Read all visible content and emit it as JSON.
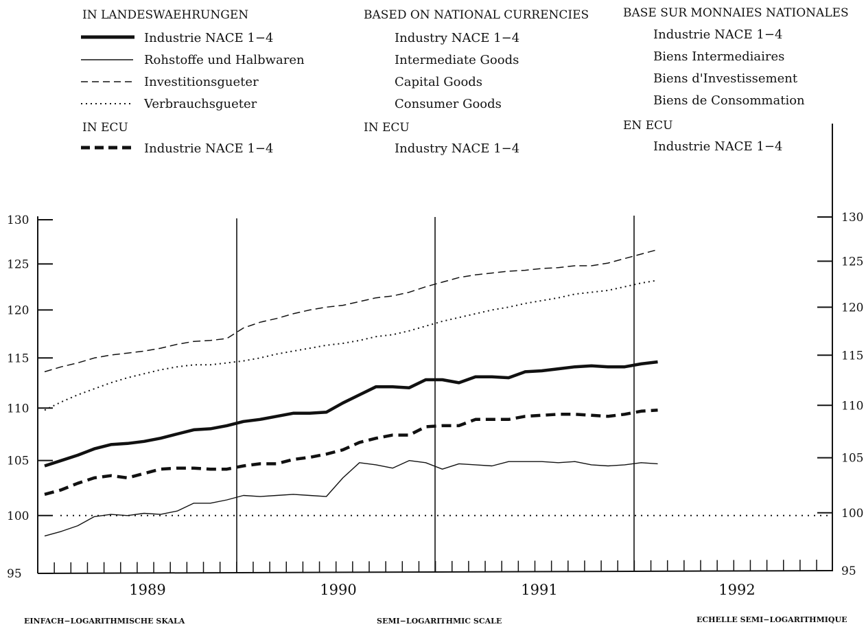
{
  "legend": {
    "german": {
      "header": "IN LANDESWAEHRUNGEN",
      "items": [
        "Industrie NACE 1−4",
        "Rohstoffe und Halbwaren",
        "Investitionsgueter",
        "Verbrauchsgueter"
      ],
      "ecu_header": "IN ECU",
      "ecu_item": "Industrie NACE 1−4"
    },
    "english": {
      "header": "BASED ON NATIONAL CURRENCIES",
      "items": [
        "Industry NACE 1−4",
        "Intermediate Goods",
        "Capital Goods",
        "Consumer Goods"
      ],
      "ecu_header": "IN ECU",
      "ecu_item": "Industry NACE 1−4"
    },
    "french": {
      "header": "BASE SUR MONNAIES NATIONALES",
      "items": [
        "Industrie NACE 1−4",
        "Biens Intermediaires",
        "Biens d'Investissement",
        "Biens de Consommation"
      ],
      "ecu_header": "EN ECU",
      "ecu_item": "Industrie NACE 1−4"
    }
  },
  "footer": {
    "left": "EINFACH−LOGARITHMISCHE SKALA",
    "center": "SEMI−LOGARITHMIC SCALE",
    "right": "ECHELLE SEMI−LOGARITHMIQUE"
  },
  "chart_data": {
    "type": "line",
    "yscale": "log",
    "ylim": [
      95,
      131
    ],
    "yticks": [
      95,
      100,
      105,
      110,
      115,
      120,
      125,
      130
    ],
    "x_labels": [
      "1989",
      "1990",
      "1991",
      "1992"
    ],
    "x_monthly_from": "1989-01",
    "reference_line": 100,
    "series": [
      {
        "name": "Industrie NACE 1−4",
        "style": "thick-solid",
        "values": [
          104.5,
          105,
          105.5,
          106.1,
          106.5,
          106.6,
          106.8,
          107.1,
          107.5,
          107.9,
          108.0,
          108.3,
          108.7,
          108.9,
          109.2,
          109.5,
          109.5,
          109.6,
          110.5,
          111.3,
          112.1,
          112.1,
          112.0,
          112.8,
          112.8,
          112.5,
          113.1,
          113.1,
          113.0,
          113.6,
          113.7,
          113.9,
          114.1,
          114.2,
          114.1,
          114.1,
          114.4,
          114.6
        ]
      },
      {
        "name": "Rohstoffe und Halbwaren",
        "style": "thin-solid",
        "values": [
          98.2,
          98.6,
          99.1,
          99.9,
          100.1,
          100.0,
          100.2,
          100.1,
          100.4,
          101.1,
          101.1,
          101.4,
          101.8,
          101.7,
          101.8,
          101.9,
          101.8,
          101.7,
          103.4,
          104.8,
          104.6,
          104.3,
          105.0,
          104.8,
          104.2,
          104.7,
          104.6,
          104.5,
          104.9,
          104.9,
          104.9,
          104.8,
          104.9,
          104.6,
          104.5,
          104.6,
          104.8,
          104.7
        ]
      },
      {
        "name": "Investitionsgueter",
        "style": "dashed",
        "values": [
          113.6,
          114.1,
          114.5,
          115.0,
          115.3,
          115.5,
          115.7,
          116.0,
          116.4,
          116.7,
          116.8,
          117.0,
          118.1,
          118.7,
          119.1,
          119.6,
          120.0,
          120.3,
          120.5,
          120.9,
          121.3,
          121.5,
          121.9,
          122.5,
          123.0,
          123.5,
          123.8,
          124.0,
          124.2,
          124.3,
          124.5,
          124.6,
          124.8,
          124.8,
          125.1,
          125.6,
          126.1,
          126.6
        ]
      },
      {
        "name": "Verbrauchsgueter",
        "style": "dotted",
        "values": [
          109.8,
          110.6,
          111.3,
          111.9,
          112.5,
          113.0,
          113.4,
          113.8,
          114.1,
          114.3,
          114.3,
          114.5,
          114.7,
          115.0,
          115.4,
          115.7,
          116.0,
          116.3,
          116.5,
          116.8,
          117.2,
          117.4,
          117.8,
          118.3,
          118.8,
          119.2,
          119.6,
          120.0,
          120.3,
          120.7,
          121.0,
          121.3,
          121.7,
          121.9,
          122.1,
          122.5,
          122.9,
          123.2
        ]
      },
      {
        "name": "Industrie NACE 1−4 (IN ECU)",
        "style": "thick-dashed",
        "values": [
          101.9,
          102.3,
          102.9,
          103.4,
          103.6,
          103.4,
          103.8,
          104.2,
          104.3,
          104.3,
          104.2,
          104.2,
          104.5,
          104.7,
          104.7,
          105.1,
          105.3,
          105.6,
          106.0,
          106.7,
          107.1,
          107.4,
          107.4,
          108.2,
          108.3,
          108.3,
          108.9,
          108.9,
          108.9,
          109.2,
          109.3,
          109.4,
          109.4,
          109.3,
          109.2,
          109.4,
          109.7,
          109.8
        ]
      }
    ]
  }
}
